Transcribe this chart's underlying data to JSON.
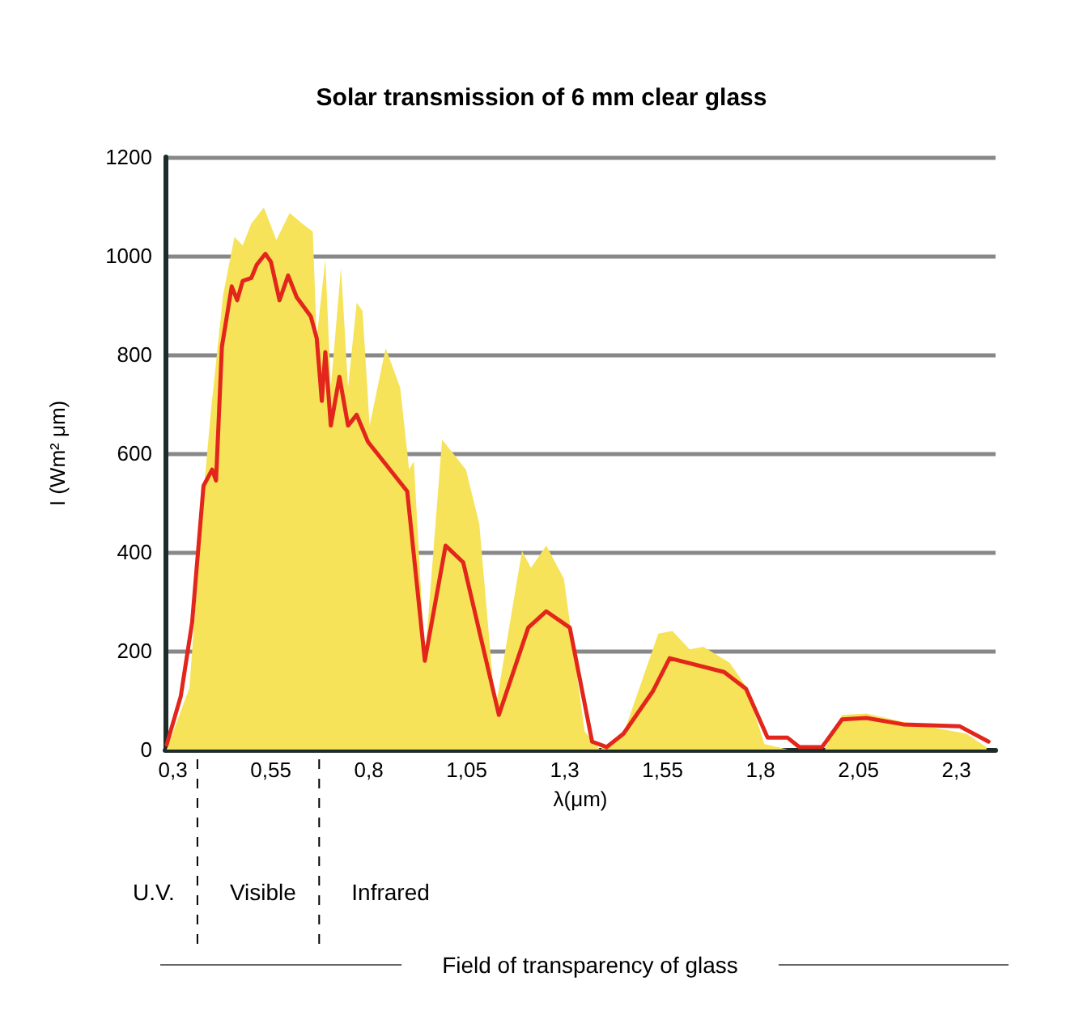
{
  "chart_data": {
    "type": "line",
    "title": "Solar transmission of 6 mm clear glass",
    "xlabel": "λ(μm)",
    "ylabel": "I (Wm² μm)",
    "series": [
      {
        "type": "area",
        "color": "#f6e35a",
        "x": [
          0.284,
          0.342,
          0.381,
          0.396,
          0.428,
          0.457,
          0.478,
          0.5,
          0.532,
          0.564,
          0.598,
          0.63,
          0.657,
          0.667,
          0.689,
          0.703,
          0.729,
          0.747,
          0.769,
          0.784,
          0.802,
          0.843,
          0.88,
          0.903,
          0.915,
          0.943,
          0.987,
          1.048,
          1.082,
          1.123,
          1.191,
          1.214,
          1.253,
          1.298,
          1.351,
          1.39,
          1.45,
          1.539,
          1.575,
          1.619,
          1.654,
          1.721,
          1.763,
          1.81,
          1.87,
          1.964,
          2.008,
          2.07,
          2.164,
          2.326,
          2.377
        ],
        "values": [
          0,
          125,
          545,
          678,
          921,
          1038,
          1021,
          1065,
          1098,
          1032,
          1087,
          1065,
          1049,
          833,
          993,
          733,
          977,
          733,
          905,
          888,
          656,
          813,
          733,
          567,
          584,
          180,
          628,
          567,
          457,
          81,
          402,
          368,
          413,
          346,
          37,
          0,
          32,
          235,
          240,
          203,
          208,
          176,
          128,
          11,
          0,
          0,
          70,
          73,
          56,
          32,
          5
        ]
      },
      {
        "type": "line",
        "color": "#e3261b",
        "x": [
          0.284,
          0.32,
          0.349,
          0.378,
          0.4,
          0.41,
          0.425,
          0.45,
          0.464,
          0.478,
          0.5,
          0.514,
          0.536,
          0.55,
          0.572,
          0.594,
          0.616,
          0.652,
          0.667,
          0.68,
          0.689,
          0.703,
          0.725,
          0.747,
          0.769,
          0.798,
          0.898,
          0.943,
          0.996,
          1.041,
          1.132,
          1.207,
          1.253,
          1.313,
          1.37,
          1.407,
          1.45,
          1.525,
          1.568,
          1.707,
          1.763,
          1.818,
          1.869,
          1.899,
          1.957,
          2.008,
          2.07,
          2.164,
          2.309,
          2.382
        ],
        "values": [
          10,
          108,
          258,
          534,
          567,
          545,
          816,
          938,
          910,
          949,
          955,
          982,
          1004,
          988,
          910,
          960,
          916,
          877,
          833,
          706,
          805,
          656,
          755,
          656,
          678,
          623,
          523,
          180,
          413,
          379,
          70,
          247,
          280,
          247,
          16,
          5,
          32,
          118,
          185,
          157,
          123,
          24,
          24,
          5,
          5,
          61,
          64,
          51,
          47,
          16
        ]
      }
    ],
    "xlim": [
      0.28,
      2.4
    ],
    "xticks": [
      {
        "value": 0.3,
        "label": "0,3"
      },
      {
        "value": 0.55,
        "label": "0,55"
      },
      {
        "value": 0.8,
        "label": "0,8"
      },
      {
        "value": 1.05,
        "label": "1,05"
      },
      {
        "value": 1.3,
        "label": "1,3"
      },
      {
        "value": 1.55,
        "label": "1,55"
      },
      {
        "value": 1.8,
        "label": "1,8"
      },
      {
        "value": 2.05,
        "label": "2,05"
      },
      {
        "value": 2.3,
        "label": "2,3"
      }
    ],
    "ylim": [
      0,
      1200
    ],
    "yticks": [
      0,
      200,
      400,
      600,
      800,
      1000,
      1200
    ],
    "grid": "y",
    "marker": "none",
    "annotations": [
      "U.V.",
      "Visible",
      "Infrared",
      "Field of transparency of glass"
    ]
  }
}
